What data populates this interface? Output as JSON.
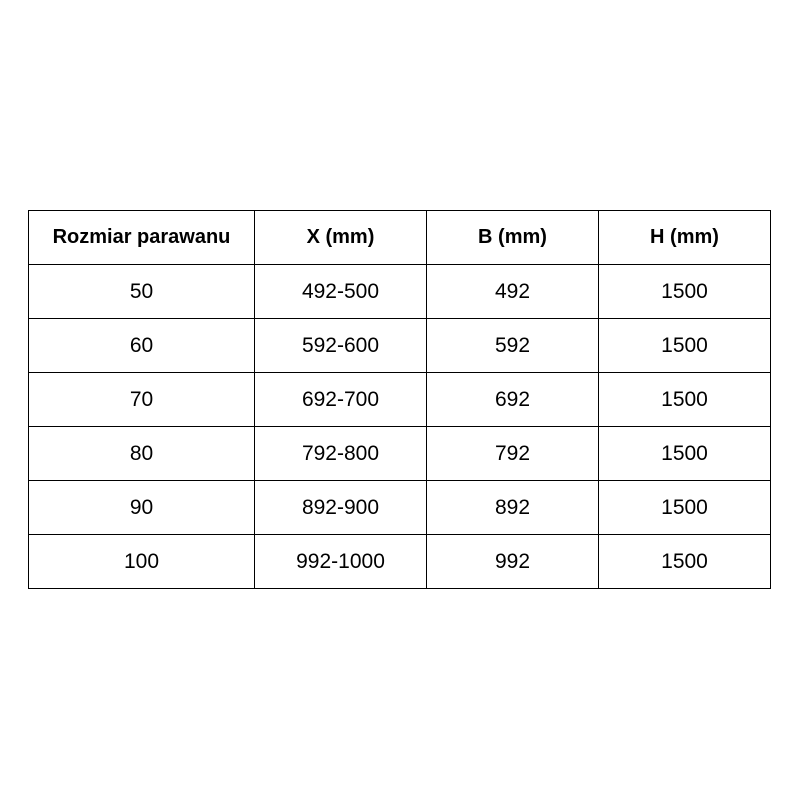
{
  "table": {
    "headers": [
      "Rozmiar parawanu",
      "X (mm)",
      "B (mm)",
      "H (mm)"
    ],
    "rows": [
      [
        "50",
        "492-500",
        "492",
        "1500"
      ],
      [
        "60",
        "592-600",
        "592",
        "1500"
      ],
      [
        "70",
        "692-700",
        "692",
        "1500"
      ],
      [
        "80",
        "792-800",
        "792",
        "1500"
      ],
      [
        "90",
        "892-900",
        "892",
        "1500"
      ],
      [
        "100",
        "992-1000",
        "992",
        "1500"
      ]
    ]
  }
}
